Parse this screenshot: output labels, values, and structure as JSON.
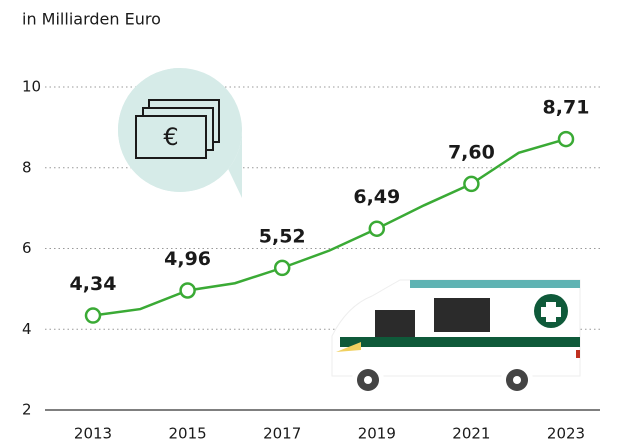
{
  "chart_data": {
    "type": "line",
    "subtitle": "in Milliarden Euro",
    "x": [
      2013,
      2014,
      2015,
      2016,
      2017,
      2018,
      2019,
      2020,
      2021,
      2022,
      2023
    ],
    "series": [
      {
        "name": null,
        "color": "#3aaa35",
        "values": [
          4.34,
          4.5,
          4.96,
          5.14,
          5.52,
          5.95,
          6.49,
          7.07,
          7.6,
          8.37,
          8.71
        ],
        "value_labels": [
          "4,34",
          null,
          "4,96",
          null,
          "5,52",
          null,
          "6,49",
          null,
          "7,60",
          null,
          "8,71"
        ]
      }
    ],
    "xlim": [
      2013,
      2023
    ],
    "xticks": [
      2013,
      2015,
      2017,
      2019,
      2021,
      2023
    ],
    "ylim": [
      2,
      10
    ],
    "yticks": [
      2,
      4,
      6,
      8,
      10
    ],
    "grid": true
  }
}
